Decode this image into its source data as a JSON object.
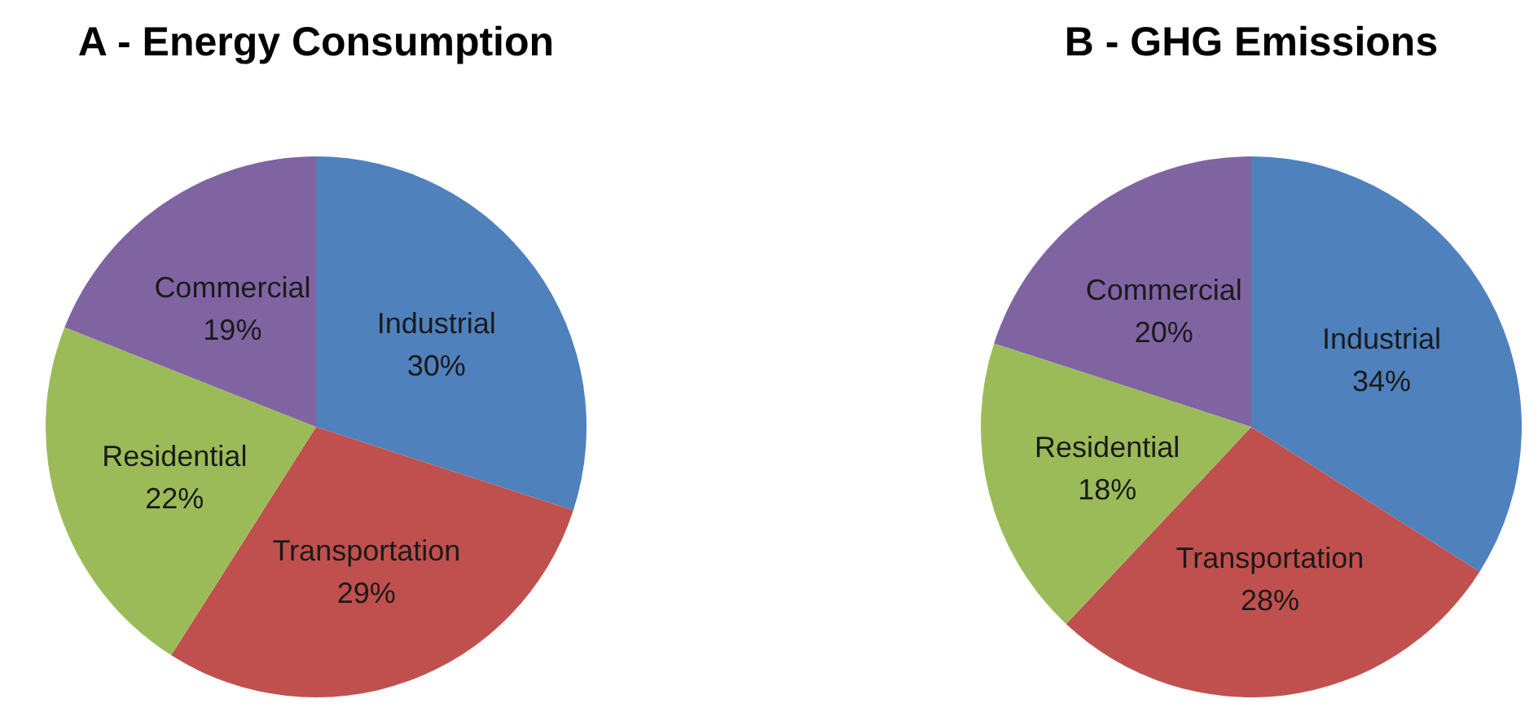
{
  "chart_data": [
    {
      "type": "pie",
      "title": "A - Energy Consumption",
      "categories": [
        "Industrial",
        "Transportation",
        "Residential",
        "Commercial"
      ],
      "values": [
        30,
        29,
        22,
        19
      ],
      "colors": [
        "#4f81bd",
        "#c0504d",
        "#9bbb59",
        "#8064a2"
      ],
      "value_labels": [
        "30%",
        "29%",
        "22%",
        "19%"
      ]
    },
    {
      "type": "pie",
      "title": "B - GHG Emissions",
      "categories": [
        "Industrial",
        "Transportation",
        "Residential",
        "Commercial"
      ],
      "values": [
        34,
        28,
        18,
        20
      ],
      "colors": [
        "#4f81bd",
        "#c0504d",
        "#9bbb59",
        "#8064a2"
      ],
      "value_labels": [
        "34%",
        "28%",
        "18%",
        "20%"
      ]
    }
  ]
}
